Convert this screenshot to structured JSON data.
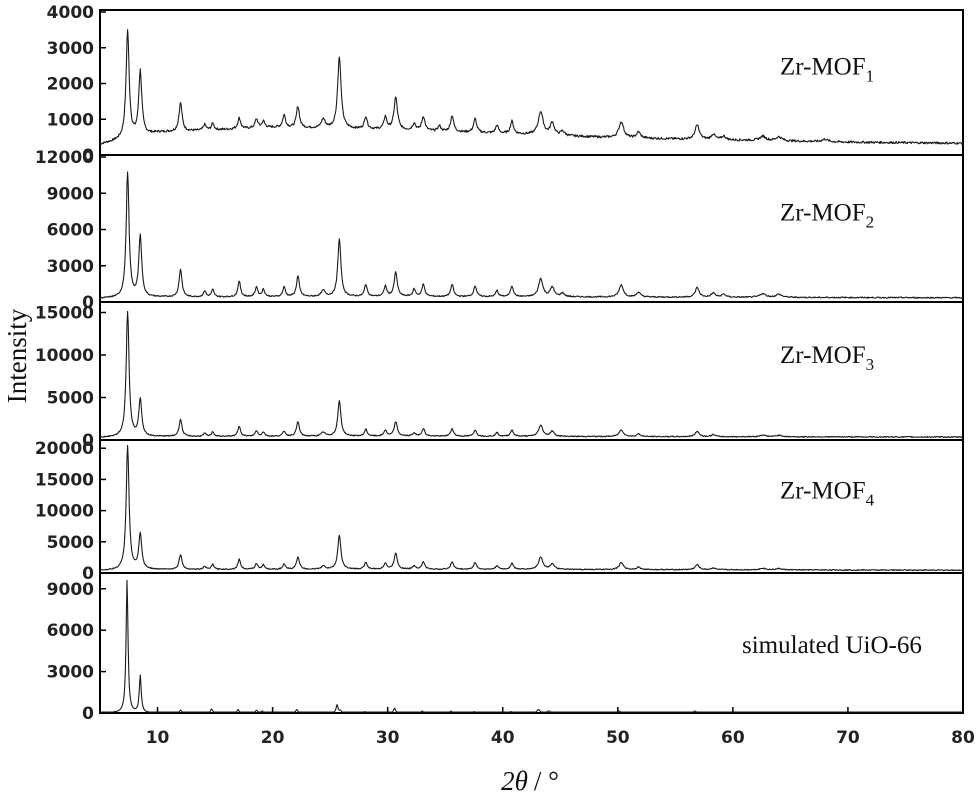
{
  "chart_data": {
    "type": "line",
    "xlabel_var": "2θ",
    "xlabel_unit": "/ °",
    "ylabel": "Intensity",
    "xlim": [
      5,
      80
    ],
    "x_ticks": [
      10,
      20,
      30,
      40,
      50,
      60,
      70,
      80
    ],
    "grid": false,
    "legend": "none",
    "panels": [
      {
        "name": "Zr-MOF1",
        "label_base": "Zr-MOF",
        "label_sub": "1",
        "ylim": [
          0,
          4000
        ],
        "y_ticks": [
          0,
          1000,
          2000,
          3000,
          4000
        ],
        "baseline": 150,
        "noise": 30,
        "points": [
          [
            5,
            150
          ],
          [
            10,
            480
          ],
          [
            20,
            620
          ],
          [
            30,
            560
          ],
          [
            40,
            450
          ],
          [
            50,
            330
          ],
          [
            60,
            270
          ],
          [
            70,
            210
          ],
          [
            80,
            180
          ]
        ],
        "peaks": [
          [
            7.4,
            3000,
            0.16
          ],
          [
            8.5,
            1800,
            0.16
          ],
          [
            12.0,
            800,
            0.16
          ],
          [
            14.1,
            160,
            0.14
          ],
          [
            14.8,
            180,
            0.14
          ],
          [
            17.1,
            300,
            0.15
          ],
          [
            18.6,
            250,
            0.15
          ],
          [
            19.2,
            180,
            0.15
          ],
          [
            21.0,
            350,
            0.15
          ],
          [
            22.2,
            600,
            0.16
          ],
          [
            24.4,
            250,
            0.2
          ],
          [
            25.8,
            2000,
            0.18
          ],
          [
            28.1,
            350,
            0.15
          ],
          [
            29.8,
            350,
            0.15
          ],
          [
            30.7,
            900,
            0.18
          ],
          [
            32.3,
            200,
            0.15
          ],
          [
            33.1,
            400,
            0.16
          ],
          [
            34.5,
            150,
            0.15
          ],
          [
            35.6,
            450,
            0.16
          ],
          [
            37.6,
            380,
            0.16
          ],
          [
            39.5,
            220,
            0.15
          ],
          [
            40.8,
            350,
            0.16
          ],
          [
            43.3,
            650,
            0.25
          ],
          [
            44.3,
            350,
            0.2
          ],
          [
            45.2,
            120,
            0.2
          ],
          [
            50.3,
            450,
            0.25
          ],
          [
            51.8,
            170,
            0.2
          ],
          [
            56.9,
            400,
            0.22
          ],
          [
            58.3,
            150,
            0.2
          ],
          [
            59.2,
            100,
            0.2
          ],
          [
            62.6,
            120,
            0.3
          ],
          [
            64.0,
            110,
            0.3
          ],
          [
            68.0,
            70,
            0.3
          ]
        ]
      },
      {
        "name": "Zr-MOF2",
        "label_base": "Zr-MOF",
        "label_sub": "2",
        "ylim": [
          0,
          12000
        ],
        "y_ticks": [
          0,
          3000,
          6000,
          9000,
          12000
        ],
        "baseline": 150,
        "noise": 50,
        "points": [
          [
            5,
            150
          ],
          [
            10,
            250
          ],
          [
            30,
            300
          ],
          [
            50,
            260
          ],
          [
            80,
            200
          ]
        ],
        "peaks": [
          [
            7.4,
            10300,
            0.15
          ],
          [
            8.5,
            5100,
            0.15
          ],
          [
            12.0,
            2300,
            0.15
          ],
          [
            14.1,
            500,
            0.13
          ],
          [
            14.8,
            600,
            0.13
          ],
          [
            17.1,
            1300,
            0.14
          ],
          [
            18.6,
            800,
            0.14
          ],
          [
            19.2,
            600,
            0.14
          ],
          [
            21.0,
            800,
            0.14
          ],
          [
            22.2,
            1700,
            0.15
          ],
          [
            24.4,
            500,
            0.2
          ],
          [
            25.8,
            4800,
            0.16
          ],
          [
            28.1,
            1000,
            0.14
          ],
          [
            29.8,
            850,
            0.14
          ],
          [
            30.7,
            2000,
            0.16
          ],
          [
            32.3,
            600,
            0.14
          ],
          [
            33.1,
            1000,
            0.15
          ],
          [
            35.6,
            1000,
            0.15
          ],
          [
            37.6,
            900,
            0.15
          ],
          [
            39.5,
            500,
            0.14
          ],
          [
            40.8,
            900,
            0.15
          ],
          [
            43.3,
            1500,
            0.22
          ],
          [
            44.3,
            800,
            0.2
          ],
          [
            45.2,
            300,
            0.2
          ],
          [
            50.3,
            1000,
            0.22
          ],
          [
            51.8,
            400,
            0.2
          ],
          [
            56.9,
            800,
            0.2
          ],
          [
            58.3,
            350,
            0.2
          ],
          [
            59.2,
            250,
            0.2
          ],
          [
            62.6,
            300,
            0.3
          ],
          [
            64.0,
            250,
            0.3
          ]
        ]
      },
      {
        "name": "Zr-MOF3",
        "label_base": "Zr-MOF",
        "label_sub": "3",
        "ylim": [
          0,
          16000
        ],
        "y_ticks": [
          0,
          5000,
          10000,
          15000
        ],
        "baseline": 150,
        "noise": 60,
        "points": [
          [
            5,
            150
          ],
          [
            10,
            250
          ],
          [
            30,
            300
          ],
          [
            50,
            250
          ],
          [
            80,
            200
          ]
        ],
        "peaks": [
          [
            7.4,
            14700,
            0.15
          ],
          [
            8.5,
            4400,
            0.15
          ],
          [
            12.0,
            2000,
            0.15
          ],
          [
            14.1,
            350,
            0.13
          ],
          [
            14.8,
            550,
            0.13
          ],
          [
            17.1,
            1200,
            0.14
          ],
          [
            18.6,
            650,
            0.14
          ],
          [
            19.2,
            500,
            0.14
          ],
          [
            21.0,
            600,
            0.14
          ],
          [
            22.2,
            1700,
            0.15
          ],
          [
            24.4,
            450,
            0.2
          ],
          [
            25.8,
            4200,
            0.16
          ],
          [
            28.1,
            800,
            0.14
          ],
          [
            29.8,
            700,
            0.14
          ],
          [
            30.7,
            1700,
            0.16
          ],
          [
            32.3,
            400,
            0.14
          ],
          [
            33.1,
            900,
            0.15
          ],
          [
            35.6,
            900,
            0.15
          ],
          [
            37.6,
            750,
            0.15
          ],
          [
            39.5,
            450,
            0.14
          ],
          [
            40.8,
            750,
            0.15
          ],
          [
            43.3,
            1300,
            0.22
          ],
          [
            44.3,
            600,
            0.2
          ],
          [
            50.3,
            800,
            0.22
          ],
          [
            51.8,
            300,
            0.2
          ],
          [
            56.9,
            650,
            0.2
          ],
          [
            58.3,
            250,
            0.2
          ],
          [
            62.6,
            200,
            0.3
          ],
          [
            64.0,
            180,
            0.3
          ]
        ]
      },
      {
        "name": "Zr-MOF4",
        "label_base": "Zr-MOF",
        "label_sub": "4",
        "ylim": [
          0,
          21000
        ],
        "y_ticks": [
          0,
          5000,
          10000,
          15000,
          20000
        ],
        "baseline": 200,
        "noise": 80,
        "points": [
          [
            5,
            200
          ],
          [
            10,
            350
          ],
          [
            30,
            400
          ],
          [
            50,
            350
          ],
          [
            80,
            250
          ]
        ],
        "peaks": [
          [
            7.4,
            19800,
            0.15
          ],
          [
            8.5,
            5700,
            0.15
          ],
          [
            12.0,
            2400,
            0.15
          ],
          [
            14.1,
            500,
            0.13
          ],
          [
            14.8,
            800,
            0.13
          ],
          [
            17.1,
            1600,
            0.14
          ],
          [
            18.6,
            900,
            0.14
          ],
          [
            19.2,
            700,
            0.14
          ],
          [
            21.0,
            800,
            0.14
          ],
          [
            22.2,
            2000,
            0.15
          ],
          [
            24.4,
            500,
            0.2
          ],
          [
            25.8,
            5500,
            0.16
          ],
          [
            28.1,
            1100,
            0.14
          ],
          [
            29.8,
            1000,
            0.14
          ],
          [
            30.7,
            2600,
            0.16
          ],
          [
            32.3,
            600,
            0.14
          ],
          [
            33.1,
            1200,
            0.15
          ],
          [
            35.6,
            1200,
            0.15
          ],
          [
            37.6,
            1100,
            0.15
          ],
          [
            39.5,
            600,
            0.14
          ],
          [
            40.8,
            1000,
            0.15
          ],
          [
            43.3,
            2000,
            0.22
          ],
          [
            44.3,
            900,
            0.2
          ],
          [
            50.3,
            1100,
            0.22
          ],
          [
            51.8,
            400,
            0.2
          ],
          [
            56.9,
            800,
            0.2
          ],
          [
            58.3,
            300,
            0.2
          ],
          [
            62.6,
            250,
            0.3
          ],
          [
            64.0,
            200,
            0.3
          ]
        ]
      },
      {
        "name": "simulated UiO-66",
        "label_base": "simulated UiO-66",
        "label_sub": "",
        "ylim": [
          0,
          10000
        ],
        "y_ticks": [
          0,
          3000,
          6000,
          9000
        ],
        "baseline": 0,
        "noise": 10,
        "points": [
          [
            5,
            0
          ],
          [
            80,
            0
          ]
        ],
        "peaks": [
          [
            7.35,
            9600,
            0.1
          ],
          [
            8.5,
            2700,
            0.1
          ],
          [
            12.0,
            200,
            0.1
          ],
          [
            14.7,
            300,
            0.1
          ],
          [
            17.0,
            250,
            0.1
          ],
          [
            18.6,
            200,
            0.1
          ],
          [
            19.1,
            150,
            0.1
          ],
          [
            22.1,
            250,
            0.1
          ],
          [
            25.6,
            600,
            0.1
          ],
          [
            25.9,
            150,
            0.1
          ],
          [
            28.0,
            100,
            0.1
          ],
          [
            30.6,
            350,
            0.1
          ],
          [
            33.0,
            150,
            0.1
          ],
          [
            35.5,
            150,
            0.1
          ],
          [
            37.5,
            100,
            0.1
          ],
          [
            40.7,
            100,
            0.1
          ],
          [
            43.1,
            250,
            0.15
          ],
          [
            44.0,
            150,
            0.15
          ],
          [
            50.1,
            150,
            0.15
          ],
          [
            56.7,
            150,
            0.15
          ]
        ]
      }
    ]
  }
}
